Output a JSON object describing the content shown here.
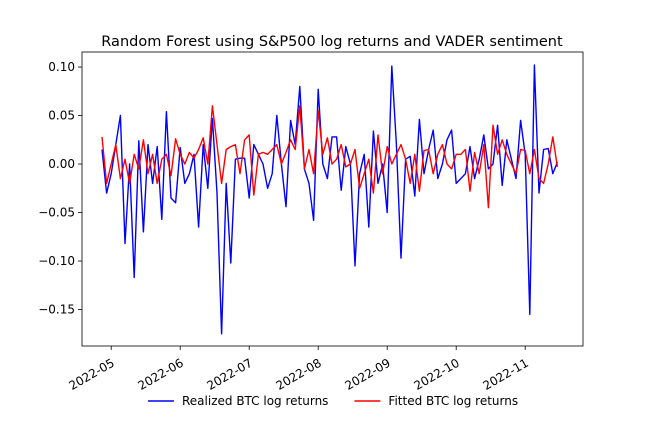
{
  "chart_data": {
    "type": "line",
    "title": "Random Forest using S&P500 log returns and VADER sentiment",
    "categories": [
      null,
      null,
      "2022-05",
      null,
      null,
      null,
      null,
      null,
      null,
      null,
      null,
      null,
      null,
      null,
      null,
      null,
      null,
      "2022-06",
      null,
      null,
      null,
      null,
      null,
      null,
      null,
      null,
      null,
      null,
      null,
      null,
      null,
      null,
      "2022-07",
      null,
      null,
      null,
      null,
      null,
      null,
      null,
      null,
      null,
      null,
      null,
      null,
      null,
      null,
      "2022-08",
      null,
      null,
      null,
      null,
      null,
      null,
      null,
      null,
      null,
      null,
      null,
      null,
      null,
      null,
      "2022-09",
      null,
      null,
      null,
      null,
      null,
      null,
      null,
      null,
      null,
      null,
      null,
      null,
      null,
      null,
      "2022-10",
      null,
      null,
      null,
      null,
      null,
      null,
      null,
      null,
      null,
      null,
      null,
      null,
      null,
      null,
      "2022-11",
      null,
      null,
      null,
      null,
      null,
      null,
      null
    ],
    "series": [
      {
        "name": "Realized BTC log returns",
        "color": "#0000ff",
        "values": [
          0.015,
          -0.03,
          -0.01,
          0.02,
          0.05,
          -0.082,
          0.0,
          -0.117,
          0.024,
          -0.07,
          0.02,
          -0.02,
          0.018,
          -0.057,
          0.054,
          -0.035,
          -0.04,
          0.017,
          -0.02,
          -0.01,
          0.01,
          -0.065,
          0.02,
          -0.025,
          0.047,
          -0.03,
          -0.175,
          -0.02,
          -0.102,
          0.005,
          0.006,
          0.006,
          -0.035,
          0.02,
          0.01,
          0.0,
          -0.025,
          -0.01,
          0.05,
          0.0,
          -0.044,
          0.045,
          0.02,
          0.08,
          -0.005,
          -0.02,
          -0.058,
          0.077,
          0.0,
          -0.015,
          0.028,
          0.028,
          -0.027,
          0.018,
          0.0,
          -0.105,
          -0.01,
          0.01,
          -0.065,
          0.034,
          -0.02,
          0.0,
          -0.05,
          0.101,
          0.02,
          -0.097,
          0.005,
          0.008,
          -0.033,
          0.046,
          -0.01,
          0.015,
          0.035,
          -0.015,
          0.0,
          0.025,
          0.035,
          -0.02,
          -0.015,
          -0.01,
          0.018,
          -0.015,
          0.005,
          0.03,
          -0.005,
          0.0,
          0.04,
          -0.022,
          0.025,
          0.005,
          -0.015,
          0.045,
          0.01,
          -0.155,
          0.102,
          -0.03,
          0.015,
          0.016,
          -0.01,
          0.002
        ]
      },
      {
        "name": "Fitted BTC log returns",
        "color": "#ff0000",
        "values": [
          0.028,
          -0.02,
          0.0,
          0.02,
          -0.015,
          0.005,
          -0.02,
          0.01,
          -0.005,
          0.025,
          -0.01,
          0.01,
          -0.02,
          0.005,
          0.01,
          -0.012,
          0.026,
          0.01,
          0.0,
          0.012,
          0.006,
          0.015,
          0.027,
          0.0,
          0.06,
          0.02,
          -0.02,
          0.015,
          0.018,
          0.02,
          -0.01,
          0.025,
          0.03,
          -0.032,
          0.01,
          0.012,
          0.01,
          0.015,
          0.02,
          0.0,
          0.012,
          0.025,
          0.015,
          0.06,
          -0.005,
          0.015,
          -0.01,
          0.055,
          0.01,
          0.027,
          0.0,
          0.005,
          0.02,
          -0.003,
          0.0,
          0.015,
          -0.025,
          -0.01,
          0.005,
          -0.03,
          0.03,
          -0.01,
          0.018,
          0.0,
          0.01,
          0.02,
          0.005,
          -0.02,
          0.01,
          -0.028,
          0.014,
          0.015,
          -0.01,
          0.01,
          0.02,
          0.0,
          -0.005,
          0.01,
          0.01,
          0.015,
          -0.028,
          0.012,
          -0.01,
          0.02,
          -0.045,
          0.04,
          0.01,
          0.025,
          0.01,
          0.0,
          -0.01,
          0.015,
          0.014,
          -0.01,
          0.015,
          -0.015,
          -0.02,
          0.0,
          0.028,
          -0.003
        ]
      }
    ],
    "ylim": [
      -0.1876,
      0.1155
    ],
    "yticks": [
      {
        "value": -0.15,
        "label": "−0.15"
      },
      {
        "value": -0.1,
        "label": "−0.10"
      },
      {
        "value": -0.05,
        "label": "−0.05"
      },
      {
        "value": 0.0,
        "label": "0.00"
      },
      {
        "value": 0.05,
        "label": "0.05"
      },
      {
        "value": 0.1,
        "label": "0.10"
      }
    ],
    "legend": "lower center outside"
  }
}
